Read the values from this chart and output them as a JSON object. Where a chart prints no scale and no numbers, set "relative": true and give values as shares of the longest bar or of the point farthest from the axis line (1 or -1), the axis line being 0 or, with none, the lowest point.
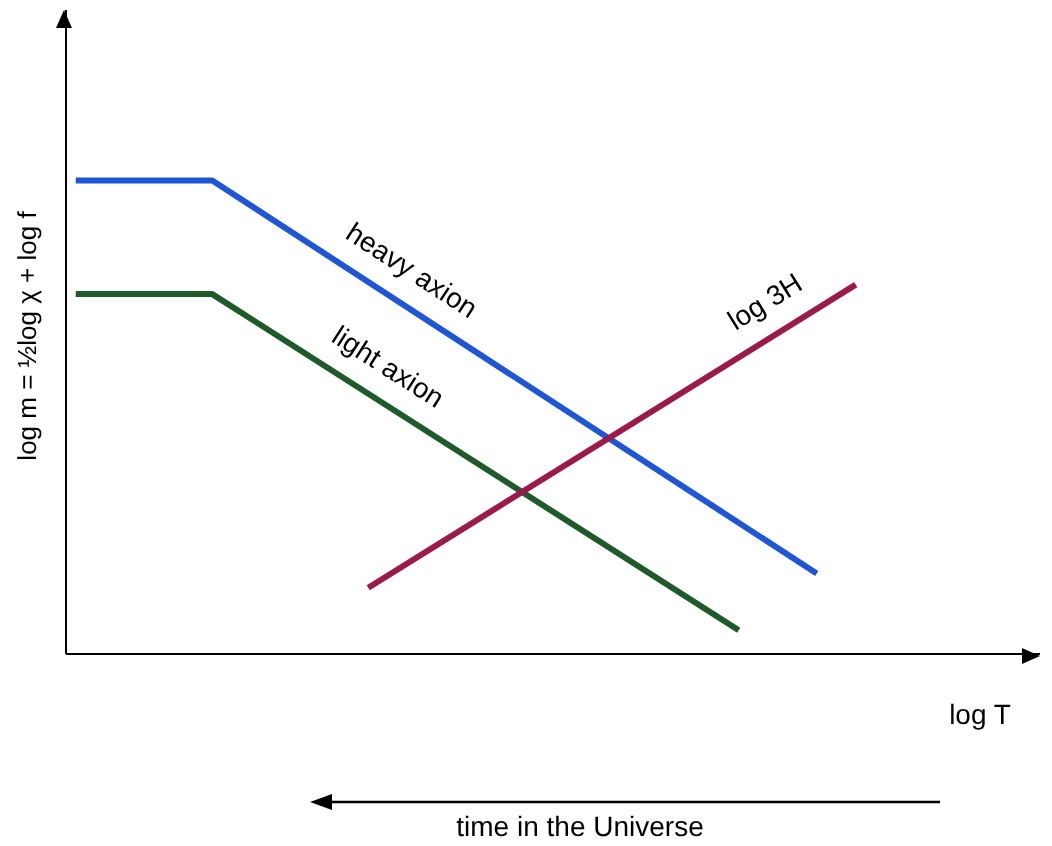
{
  "chart_data": {
    "type": "line",
    "relative": true,
    "xlabel": "log T",
    "ylabel": "log m = ½log χ + log f",
    "marker": "none",
    "categories": [
      null,
      null,
      null,
      null,
      null,
      null,
      null,
      null,
      null,
      null,
      null,
      null,
      null,
      null,
      null,
      null,
      null,
      null,
      null,
      null,
      null,
      null,
      null,
      null,
      null,
      null,
      null,
      null,
      null,
      null,
      null,
      null,
      null,
      null,
      null,
      null,
      null,
      null,
      null,
      null,
      null
    ],
    "series": [
      {
        "name": "heavy axion",
        "color": "#1f56d6",
        "values": [
          1,
          null,
          null,
          null,
          null,
          null,
          null,
          1,
          null,
          null,
          null,
          null,
          null,
          null,
          null,
          null,
          null,
          null,
          null,
          null,
          null,
          null,
          null,
          null,
          null,
          null,
          null,
          null,
          null,
          null,
          null,
          null,
          null,
          null,
          null,
          null,
          null,
          null,
          0.17,
          null,
          null
        ]
      },
      {
        "name": "light axion",
        "color": "#1e5a2a",
        "values": [
          0.76,
          null,
          null,
          null,
          null,
          null,
          null,
          0.76,
          null,
          null,
          null,
          null,
          null,
          null,
          null,
          null,
          null,
          null,
          null,
          null,
          null,
          null,
          null,
          null,
          null,
          null,
          null,
          null,
          null,
          null,
          null,
          null,
          null,
          null,
          0.05,
          null,
          null,
          null,
          null,
          null,
          null
        ]
      },
      {
        "name": "log 3H",
        "color": "#9c1a4a",
        "values": [
          null,
          null,
          null,
          null,
          null,
          null,
          null,
          null,
          null,
          null,
          null,
          null,
          null,
          null,
          null,
          0.14,
          null,
          null,
          null,
          null,
          null,
          null,
          null,
          null,
          null,
          null,
          null,
          null,
          null,
          null,
          null,
          null,
          null,
          null,
          null,
          null,
          null,
          null,
          null,
          null,
          0.78
        ]
      }
    ],
    "annotations": [
      "time in the Universe"
    ]
  }
}
